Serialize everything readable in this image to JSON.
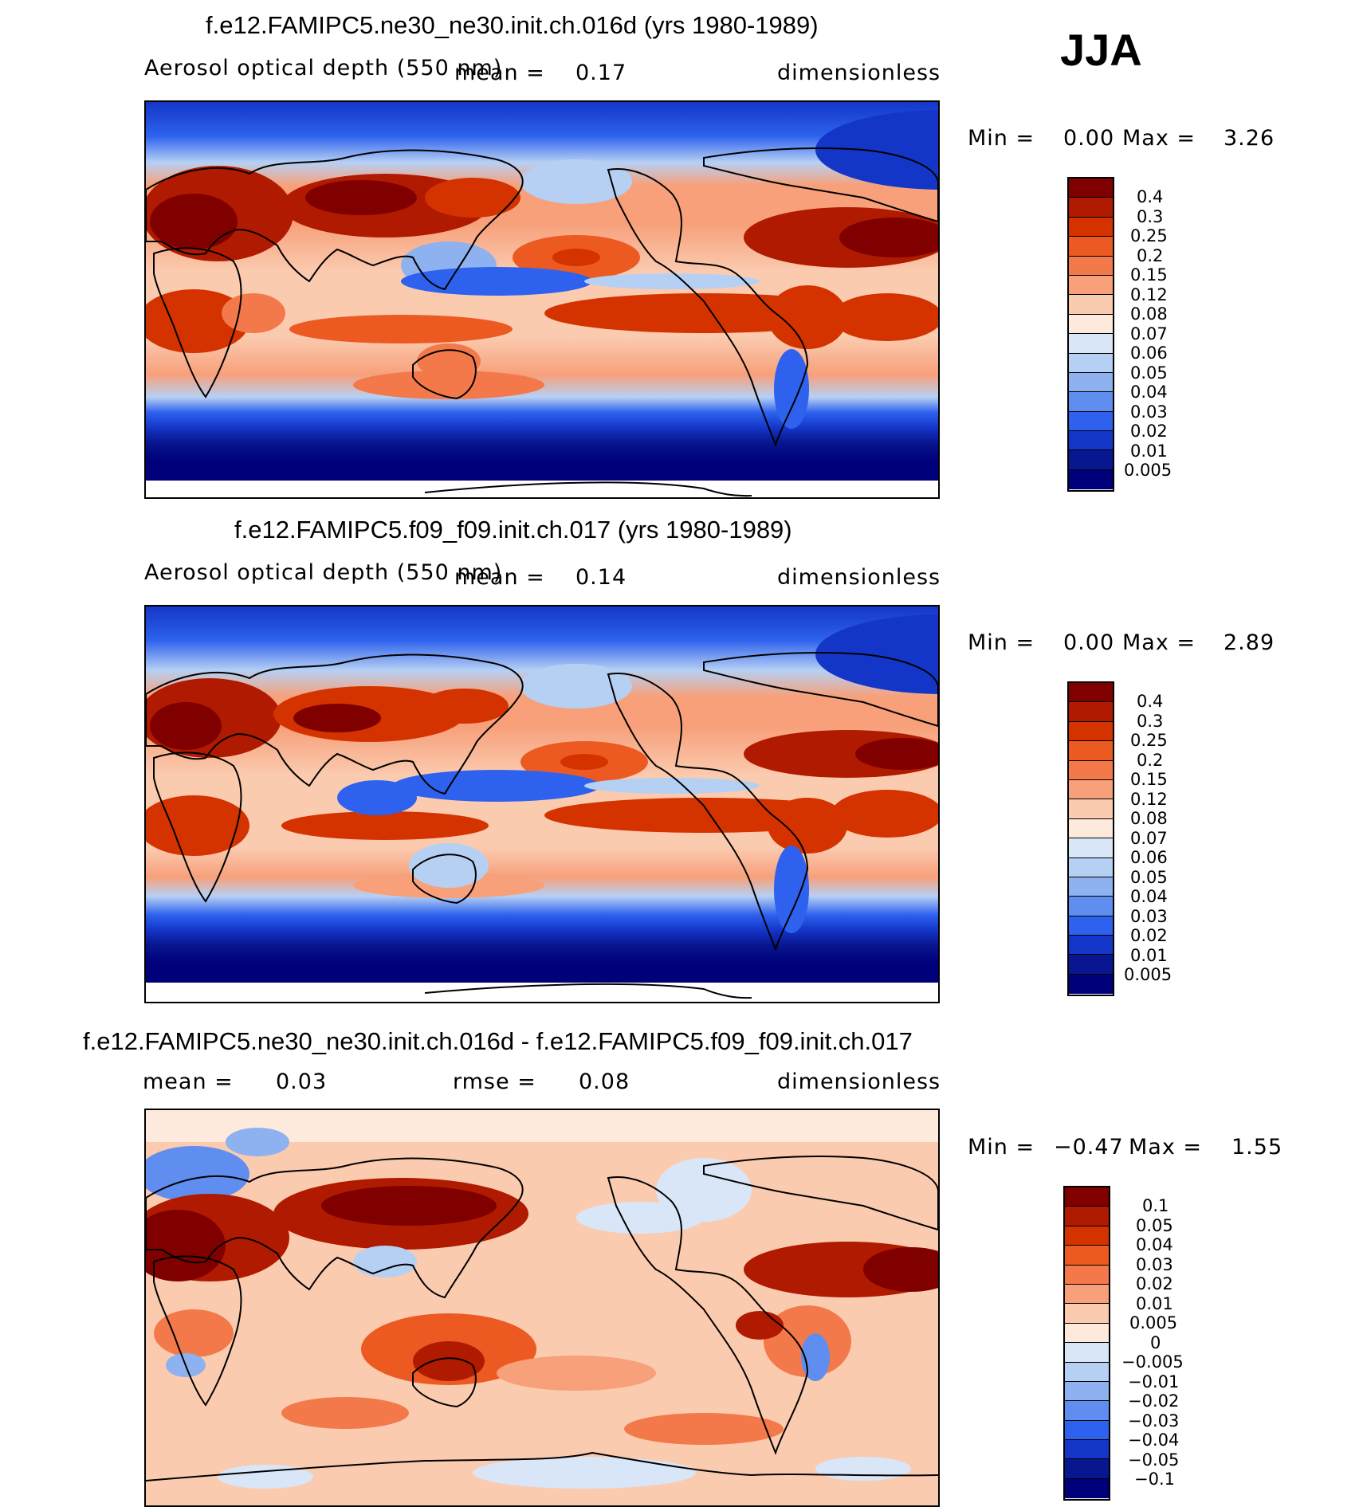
{
  "season": "JJA",
  "panels": [
    {
      "title": "f.e12.FAMIPC5.ne30_ne30.init.ch.016d (yrs 1980-1989)",
      "variable": "Aerosol optical depth (550 nm)",
      "mean_label": "mean =",
      "mean_value": "0.17",
      "units": "dimensionless",
      "min_label": "Min =",
      "min_value": "0.00",
      "max_label": "Max =",
      "max_value": "3.26",
      "map_name": "model-map-ne30"
    },
    {
      "title": "f.e12.FAMIPC5.f09_f09.init.ch.017 (yrs 1980-1989)",
      "variable": "Aerosol optical depth (550 nm)",
      "mean_label": "mean =",
      "mean_value": "0.14",
      "units": "dimensionless",
      "min_label": "Min =",
      "min_value": "0.00",
      "max_label": "Max =",
      "max_value": "2.89",
      "map_name": "model-map-f09"
    },
    {
      "title": "f.e12.FAMIPC5.ne30_ne30.init.ch.016d - f.e12.FAMIPC5.f09_f09.init.ch.017",
      "mean_label": "mean =",
      "mean_value": "0.03",
      "rmse_label": "rmse =",
      "rmse_value": "0.08",
      "units": "dimensionless",
      "min_label": "Min =",
      "min_value": "−0.47",
      "max_label": "Max =",
      "max_value": "1.55",
      "map_name": "difference-map"
    }
  ],
  "chart_data": [
    {
      "type": "heatmap",
      "title": "f.e12.FAMIPC5.ne30_ne30.init.ch.016d (yrs 1980-1989)",
      "variable": "Aerosol optical depth (550 nm)",
      "units": "dimensionless",
      "mean": 0.17,
      "min": 0.0,
      "max": 3.26,
      "colorbar_levels": [
        "0.4",
        "0.3",
        "0.25",
        "0.2",
        "0.15",
        "0.12",
        "0.08",
        "0.07",
        "0.06",
        "0.05",
        "0.04",
        "0.03",
        "0.02",
        "0.01",
        "0.005"
      ]
    },
    {
      "type": "heatmap",
      "title": "f.e12.FAMIPC5.f09_f09.init.ch.017 (yrs 1980-1989)",
      "variable": "Aerosol optical depth (550 nm)",
      "units": "dimensionless",
      "mean": 0.14,
      "min": 0.0,
      "max": 2.89,
      "colorbar_levels": [
        "0.4",
        "0.3",
        "0.25",
        "0.2",
        "0.15",
        "0.12",
        "0.08",
        "0.07",
        "0.06",
        "0.05",
        "0.04",
        "0.03",
        "0.02",
        "0.01",
        "0.005"
      ]
    },
    {
      "type": "heatmap",
      "title": "f.e12.FAMIPC5.ne30_ne30.init.ch.016d - f.e12.FAMIPC5.f09_f09.init.ch.017",
      "units": "dimensionless",
      "mean": 0.03,
      "rmse": 0.08,
      "min": -0.47,
      "max": 1.55,
      "colorbar_levels": [
        "0.1",
        "0.05",
        "0.04",
        "0.03",
        "0.02",
        "0.01",
        "0.005",
        "0",
        "−0.005",
        "−0.01",
        "−0.02",
        "−0.03",
        "−0.04",
        "−0.05",
        "−0.1"
      ]
    }
  ],
  "colorbar_colors": [
    "#800000",
    "#b01a00",
    "#d43300",
    "#ec5a21",
    "#f3794a",
    "#f7a07a",
    "#fbcbb0",
    "#feeadd",
    "#d8e6f8",
    "#b6d0f4",
    "#8eb1ef",
    "#5f8ef0",
    "#2e62ee",
    "#1436c8",
    "#08168f",
    "#00007a"
  ]
}
